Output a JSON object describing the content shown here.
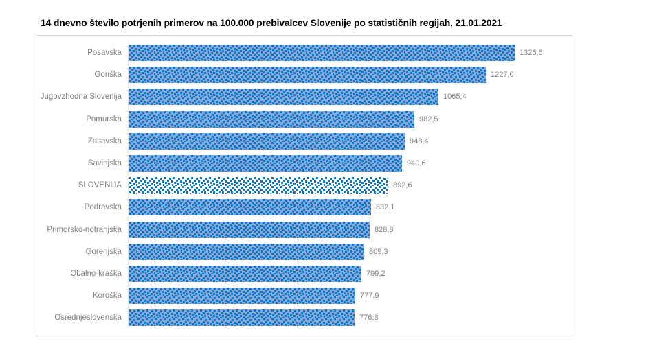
{
  "title": "14 dnevno število potrjenih primerov na 100.000  prebivalcev Slovenije po statističnih regijah, 21.01.2021",
  "date_label": "21.01.2021",
  "colors": {
    "bar_dot": "#0c76c4",
    "bar_bg": "#85aadb",
    "highlight_bg": "#ffffff",
    "label_gray": "#7f7f7f",
    "border_gray": "#d6d6d6",
    "axis_line": "#e3e3e3"
  },
  "chart_data": {
    "type": "bar",
    "orientation": "horizontal",
    "title": "14 dnevno število potrjenih primerov na 100.000  prebivalcev Slovenije po statističnih regijah, 21.01.2021",
    "categories": [
      "Posavska",
      "Goriška",
      "Jugovzhodna Slovenija",
      "Pomurska",
      "Zasavska",
      "Savinjska",
      "SLOVENIJA",
      "Podravska",
      "Primorsko-notranjska",
      "Gorenjska",
      "Obalno-kraška",
      "Koroška",
      "Osrednjeslovenska"
    ],
    "values": [
      1326.6,
      1227.0,
      1065.4,
      982.5,
      948.4,
      940.6,
      892.6,
      832.1,
      828.8,
      809.3,
      799.2,
      777.9,
      776.8
    ],
    "value_labels": [
      "1326,6",
      "1227,0",
      "1065,4",
      "982,5",
      "948,4",
      "940,6",
      "892,6",
      "832,1",
      "828,8",
      "809,3",
      "799,2",
      "777,9",
      "776,8"
    ],
    "highlight_category": "SLOVENIJA",
    "bar_pattern": "blue dotted squares on light blue; highlight bar dotted squares on white",
    "xlim": [
      0,
      1400
    ],
    "grid": false,
    "legend": false,
    "value_format": "comma-decimal",
    "data_labels": "outside-end"
  }
}
